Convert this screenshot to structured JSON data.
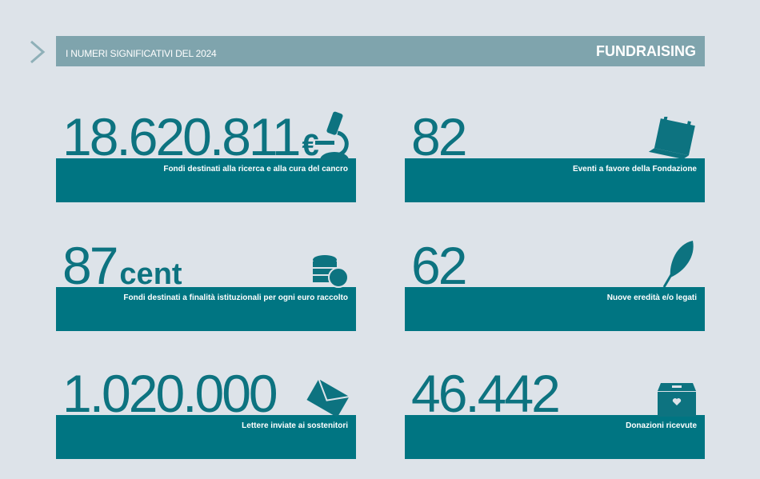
{
  "header": {
    "subtitle": "I NUMERI SIGNIFICATIVI DEL 2024",
    "title": "FUNDRAISING"
  },
  "colors": {
    "background": "#dde3e9",
    "header": "#7fa4ad",
    "teal": "#007582",
    "number": "#0d7380"
  },
  "stats": [
    {
      "value": "18.620.811",
      "unit": "€",
      "label": "Fondi destinati alla ricerca e alla cura del cancro",
      "icon": "microscope-icon"
    },
    {
      "value": "82",
      "unit": "",
      "label": "Eventi a favore della Fondazione",
      "icon": "calendar-icon"
    },
    {
      "value": "87",
      "unit": "cent",
      "label": "Fondi destinati a finalità istituzionali per ogni euro raccolto",
      "icon": "coins-icon"
    },
    {
      "value": "62",
      "unit": "",
      "label": "Nuove eredità e/o legati",
      "icon": "feather-quill-icon"
    },
    {
      "value": "1.020.000",
      "unit": "",
      "label": "Lettere inviate ai sostenitori",
      "icon": "envelope-icon"
    },
    {
      "value": "46.442",
      "unit": "",
      "label": "Donazioni ricevute",
      "icon": "donation-box-icon"
    }
  ]
}
